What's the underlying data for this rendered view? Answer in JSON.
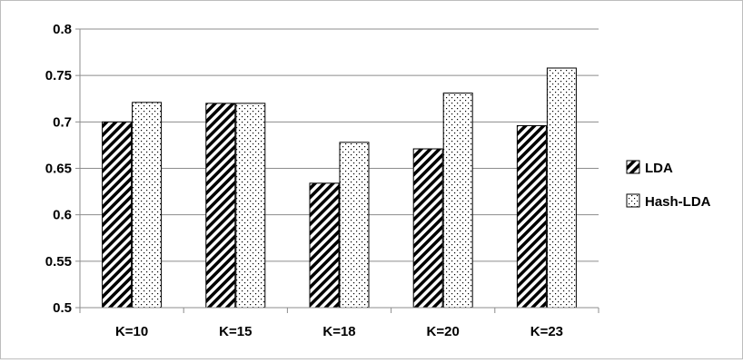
{
  "chart_data": {
    "type": "bar",
    "title": "",
    "xlabel": "",
    "ylabel": "",
    "categories": [
      "K=10",
      "K=15",
      "K=18",
      "K=20",
      "K=23"
    ],
    "series": [
      {
        "name": "LDA",
        "values": [
          0.7,
          0.72,
          0.634,
          0.671,
          0.696
        ],
        "pattern": "diagonal-hatch"
      },
      {
        "name": "Hash-LDA",
        "values": [
          0.721,
          0.72,
          0.678,
          0.731,
          0.758
        ],
        "pattern": "dots"
      }
    ],
    "ylim": [
      0.5,
      0.8
    ],
    "yticks": [
      "0.5",
      "0.55",
      "0.6",
      "0.65",
      "0.7",
      "0.75",
      "0.8"
    ],
    "grid": true,
    "legend_position": "right"
  }
}
